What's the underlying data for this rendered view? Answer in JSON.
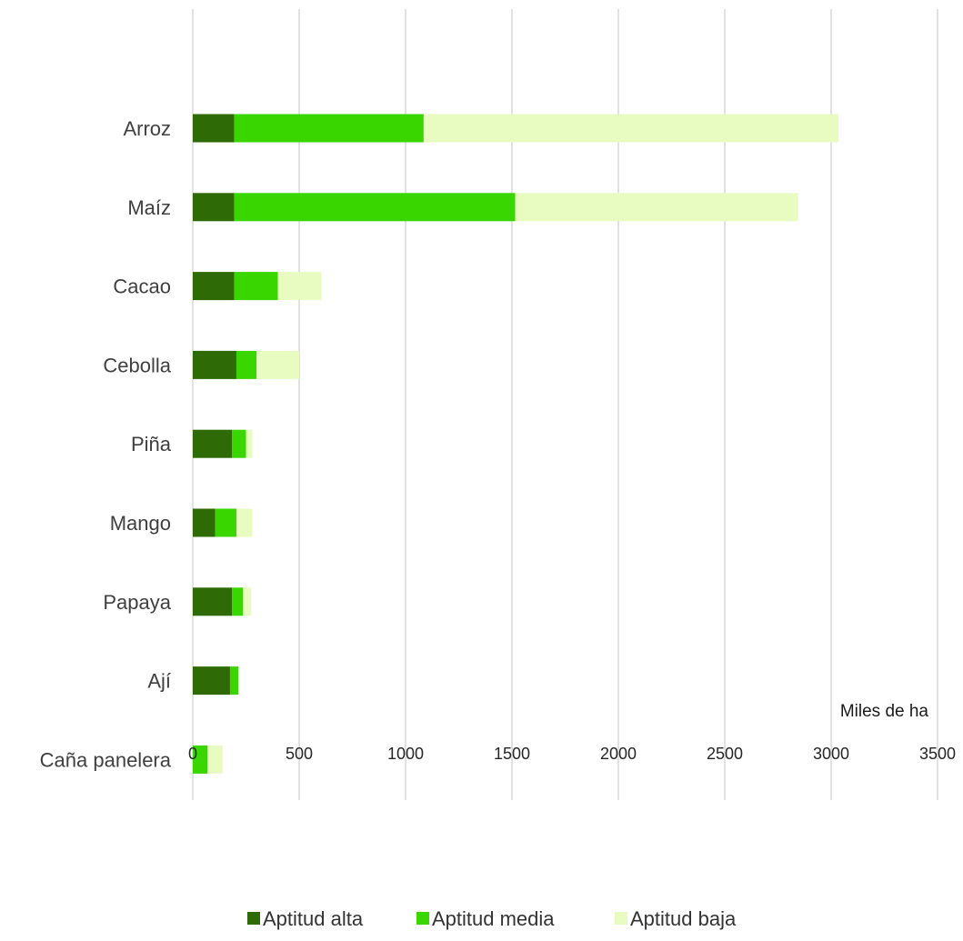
{
  "chart_data": {
    "type": "bar",
    "orientation": "horizontal",
    "stacked": true,
    "categories": [
      "Arroz",
      "Maíz",
      "Cacao",
      "Cebolla",
      "Piña",
      "Mango",
      "Papaya",
      "Ají",
      "Caña panelera"
    ],
    "series": [
      {
        "name": "Aptitud alta",
        "color": "#2e6b06",
        "values": [
          195,
          195,
          195,
          205,
          185,
          105,
          185,
          175,
          0
        ]
      },
      {
        "name": "Aptitud media",
        "color": "#39d600",
        "values": [
          890,
          1320,
          205,
          95,
          65,
          100,
          50,
          40,
          70
        ]
      },
      {
        "name": "Aptitud baja",
        "color": "#e8fcc2",
        "values": [
          1950,
          1330,
          205,
          200,
          30,
          75,
          40,
          0,
          70
        ]
      }
    ],
    "x_ticks": [
      "0",
      "500",
      "1000",
      "1500",
      "2000",
      "2500",
      "3000",
      "3500"
    ],
    "xlim": [
      0,
      3500
    ],
    "xlabel": "Miles de ha",
    "ylabel": "",
    "title": "",
    "grid": "vertical",
    "legend": "bottom"
  }
}
